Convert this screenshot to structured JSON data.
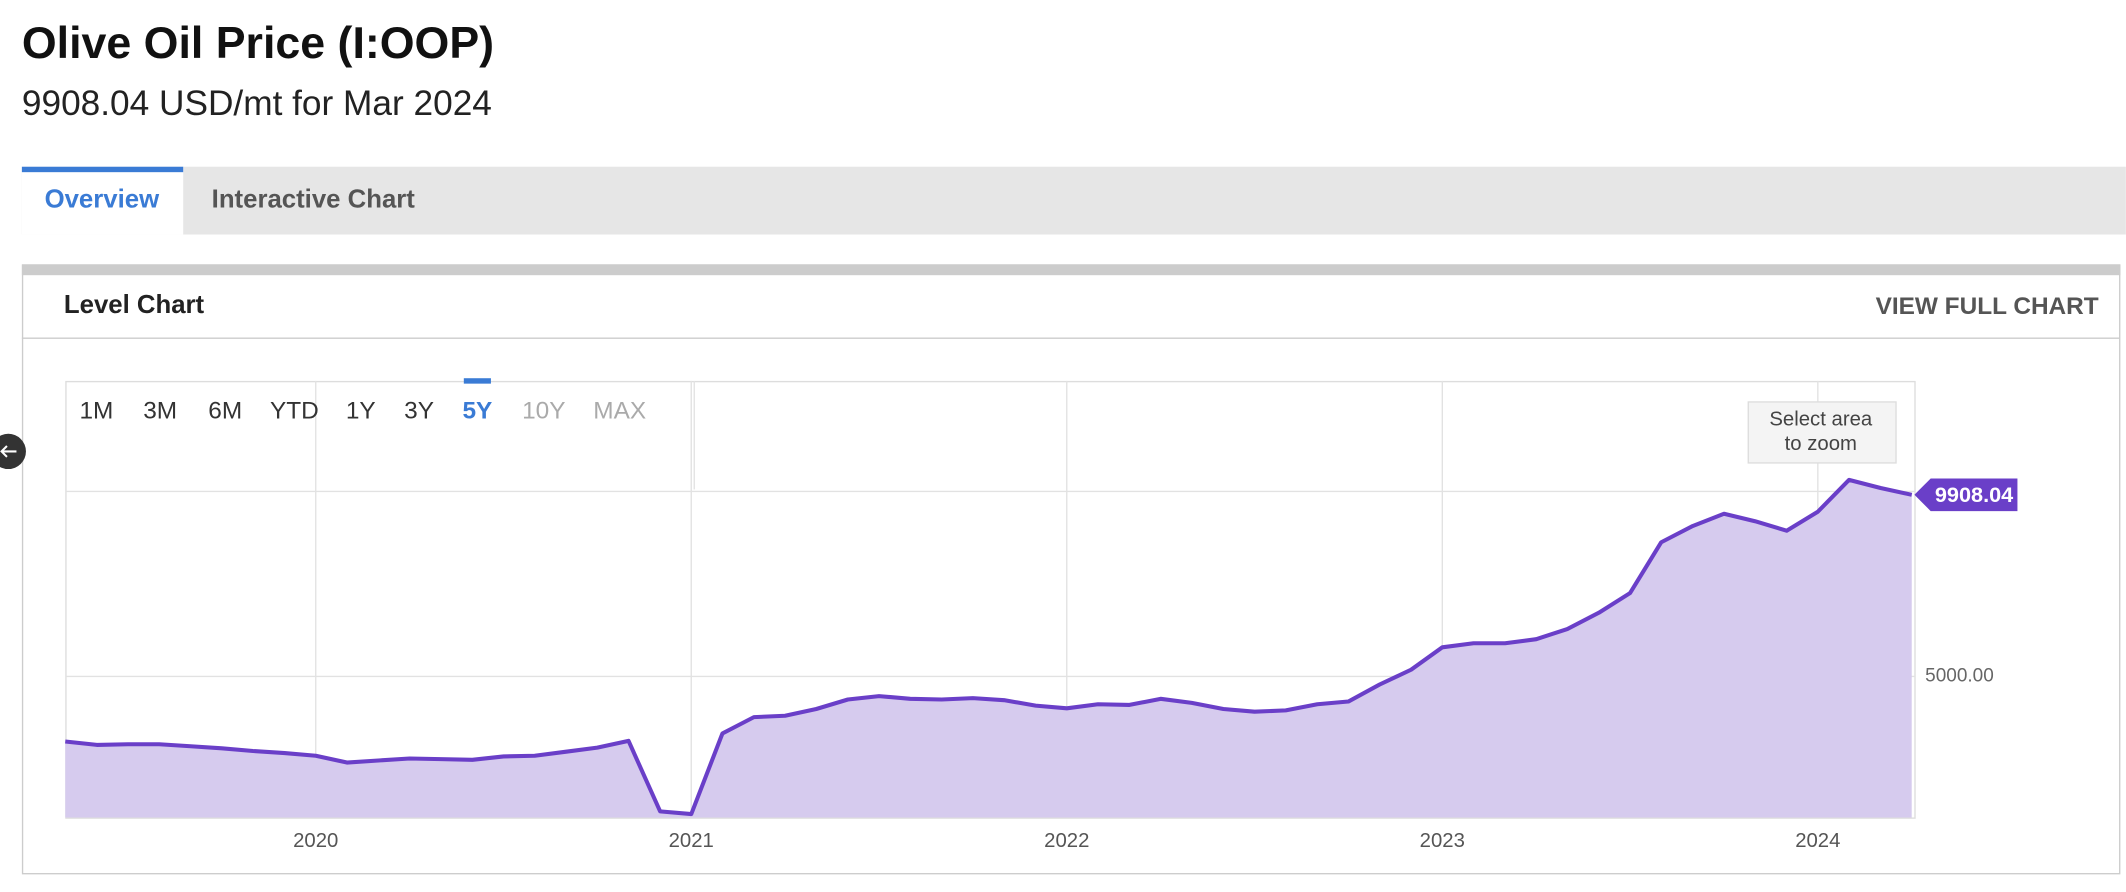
{
  "ui": {
    "title": "Olive Oil Price (I:OOP)",
    "subtitle": "9908.04 USD/mt for Mar 2024",
    "tabs": [
      "Overview",
      "Interactive Chart"
    ],
    "panel_title": "Level Chart",
    "panel_link": "VIEW FULL CHART",
    "ranges": [
      "1M",
      "3M",
      "6M",
      "YTD",
      "1Y",
      "3Y",
      "5Y",
      "10Y",
      "MAX"
    ],
    "active_range": 6,
    "disabled_ranges": [
      7,
      8
    ],
    "zoom_hint": [
      "Select area",
      "to zoom"
    ]
  },
  "chart_data": {
    "type": "area",
    "x": [
      2019.333,
      2019.417,
      2019.5,
      2019.583,
      2019.667,
      2019.75,
      2019.833,
      2019.917,
      2020,
      2020.083,
      2020.167,
      2020.25,
      2020.333,
      2020.417,
      2020.5,
      2020.583,
      2020.667,
      2020.75,
      2020.833,
      2020.917,
      2021,
      2021.083,
      2021.167,
      2021.25,
      2021.333,
      2021.417,
      2021.5,
      2021.583,
      2021.667,
      2021.75,
      2021.833,
      2021.917,
      2022,
      2022.083,
      2022.167,
      2022.25,
      2022.333,
      2022.417,
      2022.5,
      2022.583,
      2022.667,
      2022.75,
      2022.833,
      2022.917,
      2023,
      2023.083,
      2023.167,
      2023.25,
      2023.333,
      2023.417,
      2023.5,
      2023.583,
      2023.667,
      2023.75,
      2023.833,
      2023.917,
      2024,
      2024.083,
      2024.167,
      2024.25
    ],
    "series": [
      {
        "name": "Olive Oil Price",
        "color": "#6a3fc8",
        "fill": "#d6cbee",
        "values": [
          3242,
          3150,
          3168,
          3168,
          3114,
          3059,
          2985,
          2930,
          2857,
          2674,
          2729,
          2784,
          2766,
          2747,
          2839,
          2857,
          2967,
          3077,
          3260,
          1355,
          1282,
          3462,
          3901,
          3938,
          4121,
          4377,
          4469,
          4396,
          4377,
          4414,
          4359,
          4212,
          4139,
          4249,
          4231,
          4396,
          4286,
          4121,
          4048,
          4084,
          4249,
          4322,
          4780,
          5183,
          5788,
          5897,
          5897,
          6007,
          6282,
          6722,
          7253,
          8626,
          9066,
          9396,
          9194,
          8938,
          9451,
          10311,
          10092,
          9908.04
        ]
      }
    ],
    "xlim": [
      2019.333,
      2024.257
    ],
    "xticks": [
      2020,
      2021,
      2022,
      2023,
      2024
    ],
    "ylim": [
      1190,
      12985
    ],
    "yticks": [
      {
        "value": 5000,
        "label": "5000.00"
      }
    ],
    "ygrid": [
      5000,
      10000
    ],
    "last_value_label": true
  }
}
